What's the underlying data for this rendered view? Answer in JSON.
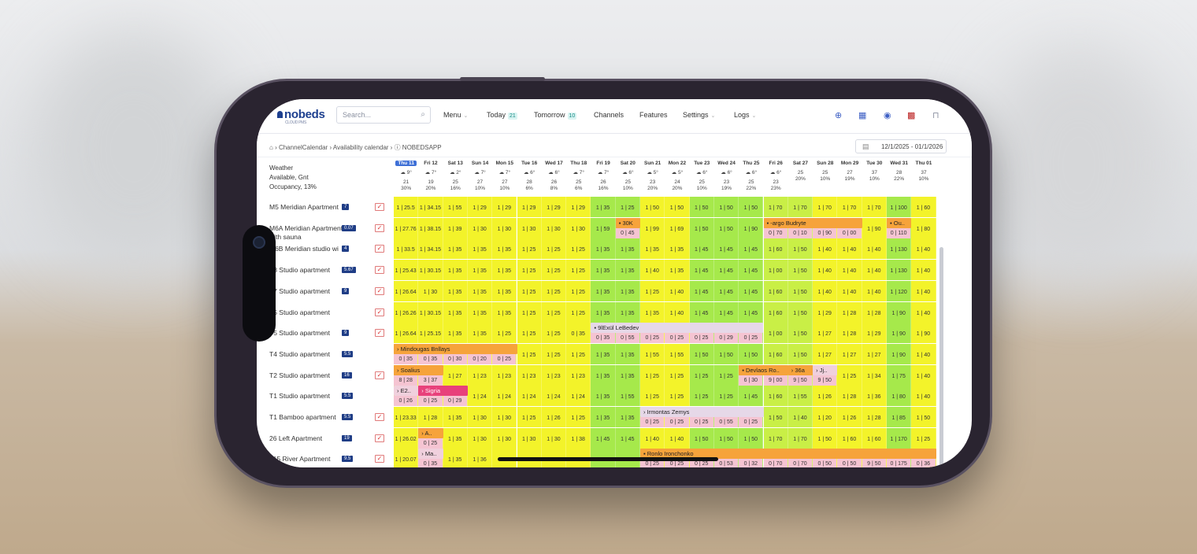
{
  "app": {
    "logo": "nobeds",
    "logo_sub": "CLOUD PMS",
    "search_placeholder": "Search..."
  },
  "nav": {
    "menu": "Menu",
    "today": "Today",
    "today_count": "21",
    "tomorrow": "Tomorrow",
    "tomorrow_count": "10",
    "channels": "Channels",
    "features": "Features",
    "settings": "Settings",
    "logs": "Logs"
  },
  "breadcrumb": {
    "c1": "ChannelCalendar",
    "c2": "Availability calendar",
    "c3": "NOBEDSAPP",
    "date_range": "12/1/2025 - 01/1/2026"
  },
  "header_left": {
    "weather": "Weather",
    "available": "Available, Gnt",
    "occupancy": "Occupancy, 13%"
  },
  "days": [
    {
      "d": "Thu 11",
      "w": "9°",
      "a": "21",
      "o": "30%"
    },
    {
      "d": "Fri 12",
      "w": "7°",
      "a": "19",
      "o": "20%"
    },
    {
      "d": "Sat 13",
      "w": "2°",
      "a": "25",
      "o": "16%"
    },
    {
      "d": "Sun 14",
      "w": "7°",
      "a": "27",
      "o": "10%"
    },
    {
      "d": "Mon 15",
      "w": "7°",
      "a": "27",
      "o": "10%"
    },
    {
      "d": "Tue 16",
      "w": "6°",
      "a": "28",
      "o": "6%"
    },
    {
      "d": "Wed 17",
      "w": "6°",
      "a": "26",
      "o": "8%"
    },
    {
      "d": "Thu 18",
      "w": "7°",
      "a": "25",
      "o": "6%"
    },
    {
      "d": "Fri 19",
      "w": "7°",
      "a": "26",
      "o": "16%"
    },
    {
      "d": "Sat 20",
      "w": "6°",
      "a": "25",
      "o": "10%"
    },
    {
      "d": "Sun 21",
      "w": "5°",
      "a": "23",
      "o": "20%"
    },
    {
      "d": "Mon 22",
      "w": "5°",
      "a": "24",
      "o": "20%"
    },
    {
      "d": "Tue 23",
      "w": "6°",
      "a": "25",
      "o": "10%"
    },
    {
      "d": "Wed 24",
      "w": "6°",
      "a": "23",
      "o": "19%"
    },
    {
      "d": "Thu 25",
      "w": "6°",
      "a": "25",
      "o": "22%"
    },
    {
      "d": "Fri 26",
      "w": "6°",
      "a": "23",
      "o": "23%"
    },
    {
      "d": "Sat 27",
      "w": "",
      "a": "25",
      "o": "20%"
    },
    {
      "d": "Sun 28",
      "w": "",
      "a": "25",
      "o": "10%"
    },
    {
      "d": "Mon 29",
      "w": "",
      "a": "27",
      "o": "19%"
    },
    {
      "d": "Tue 30",
      "w": "",
      "a": "37",
      "o": "10%"
    },
    {
      "d": "Wed 31",
      "w": "",
      "a": "28",
      "o": "22%"
    },
    {
      "d": "Thu 01",
      "w": "",
      "a": "37",
      "o": "10%"
    }
  ],
  "rows": [
    {
      "name": "M5 Meridian Apartment",
      "badge": "7",
      "check": true,
      "cells": [
        "1 | 25.5",
        "1 | 34.15",
        "1 | 55",
        "1 | 29",
        "1 | 29",
        "1 | 29",
        "1 | 29",
        "1 | 29",
        "1 | 35",
        "1 | 25",
        "1 | 50",
        "1 | 50",
        "1 | 50",
        "1 | 50",
        "1 | 50",
        "1 | 70",
        "1 | 70",
        "1 | 70",
        "1 | 70",
        "1 | 70",
        "1 | 100",
        "1 | 60"
      ]
    },
    {
      "name": "M6A Meridian Apartment with sauna",
      "badge": "0.07",
      "check": true,
      "cells": [
        "1 | 27.76",
        "1 | 38.15",
        "1 | 39",
        "1 | 30",
        "1 | 30",
        "1 | 30",
        "1 | 30",
        "1 | 30",
        "1 | 59",
        "0 | 45",
        "1 | 99",
        "1 | 69",
        "1 | 50",
        "1 | 50",
        "1 | 90",
        "0 | 70",
        "0 | 10",
        "0 | 90",
        "0 | 00",
        "1 | 90",
        "0 | 110",
        "1 | 80"
      ]
    },
    {
      "name": "M6B Meridian studio wi",
      "badge": "4",
      "check": true,
      "cells": [
        "1 | 33.5",
        "1 | 34.15",
        "1 | 35",
        "1 | 35",
        "1 | 35",
        "1 | 25",
        "1 | 25",
        "1 | 25",
        "1 | 35",
        "1 | 35",
        "1 | 35",
        "1 | 35",
        "1 | 45",
        "1 | 45",
        "1 | 45",
        "1 | 60",
        "1 | 50",
        "1 | 40",
        "1 | 40",
        "1 | 40",
        "1 | 130",
        "1 | 40"
      ]
    },
    {
      "name": "T8 Studio apartment",
      "badge": "5.67",
      "check": true,
      "cells": [
        "1 | 25.43",
        "1 | 30.15",
        "1 | 35",
        "1 | 35",
        "1 | 35",
        "1 | 25",
        "1 | 25",
        "1 | 25",
        "1 | 35",
        "1 | 35",
        "1 | 40",
        "1 | 35",
        "1 | 45",
        "1 | 45",
        "1 | 45",
        "1 | 00",
        "1 | 50",
        "1 | 40",
        "1 | 40",
        "1 | 40",
        "1 | 130",
        "1 | 40"
      ]
    },
    {
      "name": "T7 Studio apartment",
      "badge": "9",
      "check": true,
      "cells": [
        "1 | 26.64",
        "1 | 30",
        "1 | 35",
        "1 | 35",
        "1 | 35",
        "1 | 25",
        "1 | 25",
        "1 | 25",
        "1 | 35",
        "1 | 35",
        "1 | 25",
        "1 | 40",
        "1 | 45",
        "1 | 45",
        "1 | 45",
        "1 | 60",
        "1 | 50",
        "1 | 40",
        "1 | 40",
        "1 | 40",
        "1 | 120",
        "1 | 40"
      ]
    },
    {
      "name": "T5 Studio apartment",
      "badge": "",
      "check": true,
      "cells": [
        "1 | 26.26",
        "1 | 30.15",
        "1 | 35",
        "1 | 35",
        "1 | 35",
        "1 | 25",
        "1 | 25",
        "1 | 25",
        "1 | 35",
        "1 | 35",
        "1 | 35",
        "1 | 40",
        "1 | 45",
        "1 | 45",
        "1 | 45",
        "1 | 60",
        "1 | 50",
        "1 | 29",
        "1 | 28",
        "1 | 28",
        "1 | 90",
        "1 | 40"
      ]
    },
    {
      "name": "T5 Studio apartment",
      "badge": "9",
      "check": true,
      "cells": [
        "1 | 26.64",
        "1 | 25.15",
        "1 | 35",
        "1 | 35",
        "1 | 25",
        "1 | 25",
        "1 | 25",
        "0 | 35",
        "0 | 35",
        "0 | 55",
        "0 | 25",
        "0 | 25",
        "0 | 25",
        "0 | 29",
        "0 | 25",
        "1 | 00",
        "1 | 50",
        "1 | 27",
        "1 | 28",
        "1 | 29",
        "1 | 90",
        "1 | 90"
      ]
    },
    {
      "name": "T4 Studio apartment",
      "badge": "5.5",
      "check": false,
      "cells": [
        "0 | 35",
        "0 | 35",
        "0 | 30",
        "0 | 20",
        "0 | 25",
        "1 | 25",
        "1 | 25",
        "1 | 25",
        "1 | 35",
        "1 | 35",
        "1 | 55",
        "1 | 55",
        "1 | 50",
        "1 | 50",
        "1 | 50",
        "1 | 60",
        "1 | 50",
        "1 | 27",
        "1 | 27",
        "1 | 27",
        "1 | 90",
        "1 | 40"
      ]
    },
    {
      "name": "T2 Studio apartment",
      "badge": "16",
      "check": true,
      "cells": [
        "8 | 28",
        "3 | 37",
        "1 | 27",
        "1 | 23",
        "1 | 23",
        "1 | 23",
        "1 | 23",
        "1 | 23",
        "1 | 35",
        "1 | 35",
        "1 | 25",
        "1 | 25",
        "1 | 25",
        "1 | 25",
        "6 | 30",
        "9 | 00",
        "9 | 50",
        "9 | 50",
        "1 | 25",
        "1 | 34",
        "1 | 75",
        "1 | 40"
      ]
    },
    {
      "name": "T1 Studio apartment",
      "badge": "5.5",
      "check": false,
      "cells": [
        "0 | 26",
        "0 | 25",
        "0 | 29",
        "1 | 24",
        "1 | 24",
        "1 | 24",
        "1 | 24",
        "1 | 24",
        "1 | 35",
        "1 | 55",
        "1 | 25",
        "1 | 25",
        "1 | 25",
        "1 | 25",
        "1 | 45",
        "1 | 60",
        "1 | 55",
        "1 | 26",
        "1 | 28",
        "1 | 36",
        "1 | 80",
        "1 | 40"
      ]
    },
    {
      "name": "T1 Bamboo apartment",
      "badge": "5.5",
      "check": true,
      "cells": [
        "1 | 23.33",
        "1 | 28",
        "1 | 35",
        "1 | 30",
        "1 | 30",
        "1 | 25",
        "1 | 26",
        "1 | 25",
        "1 | 35",
        "1 | 35",
        "0 | 25",
        "0 | 25",
        "0 | 25",
        "0 | 55",
        "0 | 25",
        "1 | 50",
        "1 | 40",
        "1 | 20",
        "1 | 26",
        "1 | 28",
        "1 | 85",
        "1 | 50"
      ]
    },
    {
      "name": "26 Left Apartment",
      "badge": "19",
      "check": true,
      "cells": [
        "1 | 26.02",
        "0 | 25",
        "1 | 35",
        "1 | 30",
        "1 | 30",
        "1 | 30",
        "1 | 30",
        "1 | 38",
        "1 | 45",
        "1 | 45",
        "1 | 40",
        "1 | 40",
        "1 | 50",
        "1 | 50",
        "1 | 50",
        "1 | 70",
        "1 | 70",
        "1 | 50",
        "1 | 60",
        "1 | 60",
        "1 | 170",
        "1 | 25"
      ]
    },
    {
      "name": "215 River Apartment",
      "badge": "9.5",
      "check": true,
      "cells": [
        "1 | 20.07",
        "0 | 35",
        "1 | 35",
        "1 | 36",
        "",
        "",
        "",
        "",
        "",
        "",
        "0 | 25",
        "0 | 25",
        "0 | 25",
        "0 | 53",
        "0 | 32",
        "0 | 70",
        "0 | 70",
        "0 | 50",
        "0 | 50",
        "9 | 50",
        "0 | 175",
        "0 | 36"
      ]
    }
  ],
  "bookings": [
    {
      "row": 1,
      "start": 9,
      "len": 1,
      "label": "30K",
      "style": "o",
      "icon": "booking-icon"
    },
    {
      "row": 1,
      "start": 15,
      "len": 4,
      "label": "-argo Budryte",
      "style": "o",
      "icon": "booking-icon"
    },
    {
      "row": 1,
      "start": 20,
      "len": 1,
      "label": "Ou..",
      "style": "o",
      "icon": "booking-icon"
    },
    {
      "row": 6,
      "start": 8,
      "len": 7,
      "label": "9lExül LeBedev",
      "style": "l",
      "icon": "booking-icon"
    },
    {
      "row": 7,
      "start": 0,
      "len": 5,
      "label": "Mindougas Bnllays",
      "style": "o",
      "icon": "airbnb-icon"
    },
    {
      "row": 8,
      "start": 0,
      "len": 2,
      "label": "Soalius",
      "style": "o",
      "icon": "airbnb-icon"
    },
    {
      "row": 8,
      "start": 14,
      "len": 2,
      "label": "Devlaos Ro..",
      "style": "o",
      "icon": "booking-icon"
    },
    {
      "row": 8,
      "start": 16,
      "len": 1,
      "label": "36a",
      "style": "o",
      "icon": "airbnb-icon"
    },
    {
      "row": 8,
      "start": 17,
      "len": 1,
      "label": "Jj..",
      "style": "p",
      "icon": "airbnb-icon"
    },
    {
      "row": 9,
      "start": 0,
      "len": 1,
      "label": "E2..",
      "style": "p",
      "icon": "airbnb-icon"
    },
    {
      "row": 9,
      "start": 1,
      "len": 2,
      "label": "Sigria",
      "style": "pk",
      "icon": "airbnb-icon"
    },
    {
      "row": 10,
      "start": 10,
      "len": 5,
      "label": "Irmontas Zemys",
      "style": "l",
      "icon": "airbnb-icon"
    },
    {
      "row": 11,
      "start": 1,
      "len": 1,
      "label": "A..",
      "style": "o",
      "icon": "airbnb-icon"
    },
    {
      "row": 12,
      "start": 1,
      "len": 1,
      "label": "Ma..",
      "style": "p",
      "icon": "airbnb-icon"
    },
    {
      "row": 12,
      "start": 10,
      "len": 12,
      "label": "Ronlo Ironchonko",
      "style": "o",
      "icon": "booking-icon"
    }
  ],
  "colors": {
    "available_yellow": "#f3f32a",
    "weekend_green": "#a6e94b",
    "booking_orange": "#f6a33b",
    "booked_pink": "#f5c4d2",
    "brand_blue": "#1d3f8f"
  }
}
